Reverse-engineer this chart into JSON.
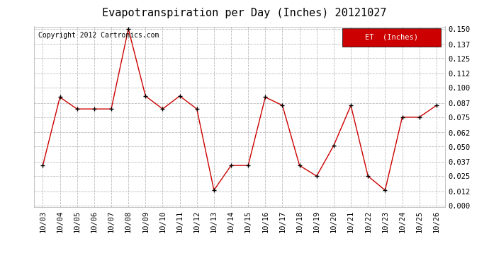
{
  "title": "Evapotranspiration per Day (Inches) 20121027",
  "copyright_text": "Copyright 2012 Cartronics.com",
  "legend_label": "ET  (Inches)",
  "legend_bg": "#cc0000",
  "legend_text_color": "#ffffff",
  "line_color": "#cc0000",
  "marker_color": "#000000",
  "background_color": "#ffffff",
  "grid_color": "#bbbbbb",
  "dates": [
    "10/03",
    "10/04",
    "10/05",
    "10/06",
    "10/07",
    "10/08",
    "10/09",
    "10/10",
    "10/11",
    "10/12",
    "10/13",
    "10/14",
    "10/15",
    "10/16",
    "10/17",
    "10/18",
    "10/19",
    "10/20",
    "10/21",
    "10/22",
    "10/23",
    "10/24",
    "10/25",
    "10/26"
  ],
  "values": [
    0.034,
    0.092,
    0.082,
    0.082,
    0.082,
    0.15,
    0.093,
    0.082,
    0.093,
    0.082,
    0.013,
    0.034,
    0.034,
    0.092,
    0.085,
    0.034,
    0.025,
    0.051,
    0.085,
    0.025,
    0.013,
    0.075,
    0.075,
    0.085
  ],
  "ylim": [
    -0.001,
    0.152
  ],
  "yticks": [
    0.0,
    0.012,
    0.025,
    0.037,
    0.05,
    0.062,
    0.075,
    0.087,
    0.1,
    0.112,
    0.125,
    0.137,
    0.15
  ],
  "title_fontsize": 11,
  "axis_fontsize": 7.5,
  "copyright_fontsize": 7
}
